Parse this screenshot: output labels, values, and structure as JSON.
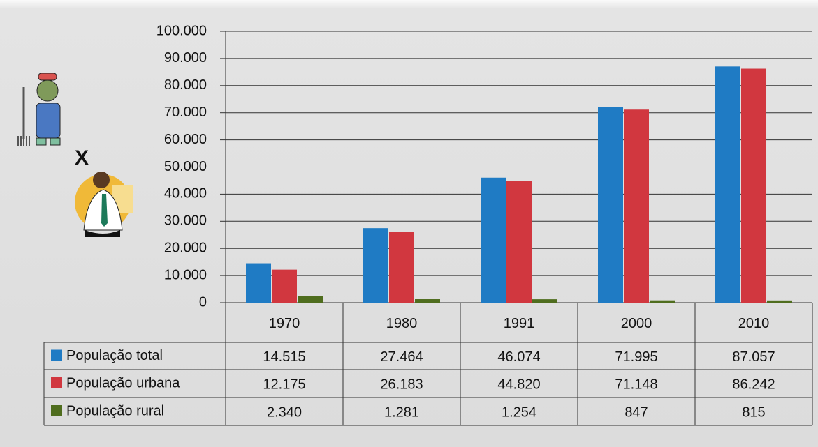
{
  "chart_data": {
    "type": "bar",
    "annotation": "X",
    "categories": [
      "1970",
      "1980",
      "1991",
      "2000",
      "2010"
    ],
    "series": [
      {
        "name": "População total",
        "color": "#1f7bc4",
        "values": [
          14515,
          27464,
          46074,
          71995,
          87057
        ],
        "value_labels": [
          "14.515",
          "27.464",
          "46.074",
          "71.995",
          "87.057"
        ]
      },
      {
        "name": "População urbana",
        "color": "#d1373f",
        "values": [
          12175,
          26183,
          44820,
          71148,
          86242
        ],
        "value_labels": [
          "12.175",
          "26.183",
          "44.820",
          "71.148",
          "86.242"
        ]
      },
      {
        "name": "População rural",
        "color": "#4f6d1e",
        "values": [
          2340,
          1281,
          1254,
          847,
          815
        ],
        "value_labels": [
          "2.340",
          "1.281",
          "1.254",
          "847",
          "815"
        ]
      }
    ],
    "ylim": [
      0,
      100000
    ],
    "yticks": [
      0,
      {
        "value": 10000,
        "label": "10.000"
      },
      {
        "value": 20000,
        "label": "20.000"
      },
      {
        "value": 30000,
        "label": "30.000"
      },
      {
        "value": 40000,
        "label": "40.000"
      },
      {
        "value": 50000,
        "label": "50.000"
      },
      {
        "value": 60000,
        "label": "60.000"
      },
      {
        "value": 70000,
        "label": "70.000"
      },
      {
        "value": 80000,
        "label": "80.000"
      },
      {
        "value": 90000,
        "label": "90.000"
      },
      {
        "value": 100000,
        "label": "100.000"
      }
    ],
    "grid": true
  }
}
